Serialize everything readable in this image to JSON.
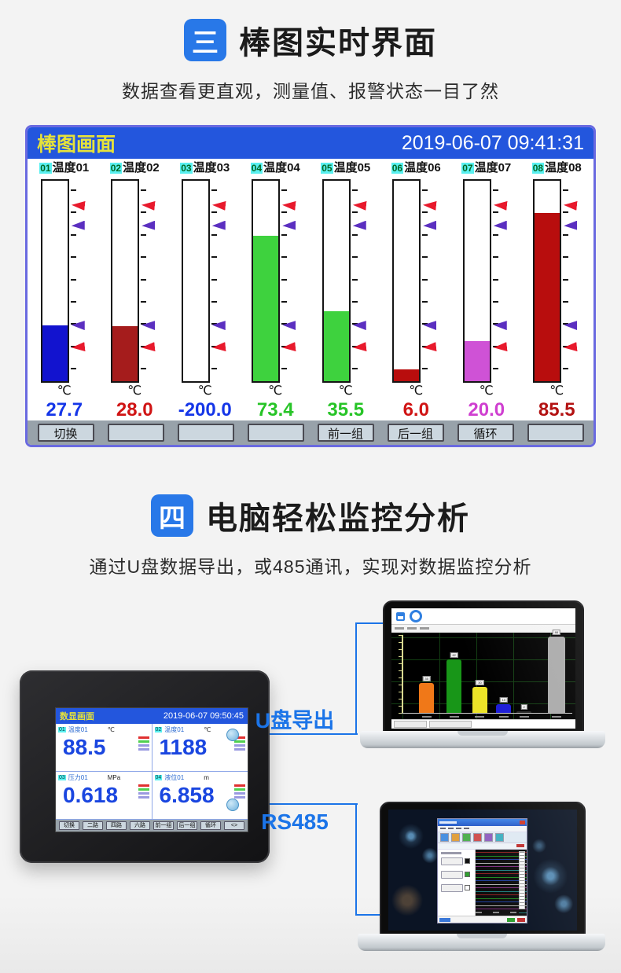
{
  "colors": {
    "accent_blue": "#2878e8",
    "link_blue": "#1b74e8",
    "screen_header_blue": "#2356dd",
    "screen_title_yellow": "#e6e23a",
    "alarm_red": "#e8192c",
    "alarm_purple": "#5b2fc0",
    "device_value_blue": "#1a46e0"
  },
  "section3": {
    "badge": "三",
    "title": "棒图实时界面",
    "subtitle": "数据查看更直观，测量值、报警状态一目了然",
    "screen": {
      "title": "棒图画面",
      "datetime": "2019-06-07 09:41:31",
      "alarm_marks": {
        "hh": 87,
        "h": 77,
        "l": 27,
        "ll": 16
      },
      "channels": [
        {
          "tag": "01",
          "name": "温度01",
          "unit": "℃",
          "value": "27.7",
          "fill_pct": 27.7,
          "fill_color": "#1213cf",
          "value_color": "#1536e8"
        },
        {
          "tag": "02",
          "name": "温度02",
          "unit": "℃",
          "value": "28.0",
          "fill_pct": 27.5,
          "fill_color": "#a51c1c",
          "value_color": "#d01414"
        },
        {
          "tag": "03",
          "name": "温度03",
          "unit": "℃",
          "value": "-200.0",
          "fill_pct": 0,
          "fill_color": "#ffffff",
          "value_color": "#1536e8"
        },
        {
          "tag": "04",
          "name": "温度04",
          "unit": "℃",
          "value": "73.4",
          "fill_pct": 72.5,
          "fill_color": "#3ed23e",
          "value_color": "#27c427"
        },
        {
          "tag": "05",
          "name": "温度05",
          "unit": "℃",
          "value": "35.5",
          "fill_pct": 35,
          "fill_color": "#3ed23e",
          "value_color": "#27c427"
        },
        {
          "tag": "06",
          "name": "温度06",
          "unit": "℃",
          "value": "6.0",
          "fill_pct": 6,
          "fill_color": "#b80d0d",
          "value_color": "#d01414"
        },
        {
          "tag": "07",
          "name": "温度07",
          "unit": "℃",
          "value": "20.0",
          "fill_pct": 20,
          "fill_color": "#cf52d6",
          "value_color": "#cf3fd0"
        },
        {
          "tag": "08",
          "name": "温度08",
          "unit": "℃",
          "value": "85.5",
          "fill_pct": 84,
          "fill_color": "#b80d0d",
          "value_color": "#b31212"
        }
      ],
      "buttons": [
        "切换",
        "",
        "",
        "",
        "前一组",
        "后一组",
        "循环",
        ""
      ]
    }
  },
  "chart_data": [
    {
      "type": "bar",
      "title": "棒图画面",
      "datetime": "2019-06-07 09:41:31",
      "categories": [
        "温度01",
        "温度02",
        "温度03",
        "温度04",
        "温度05",
        "温度06",
        "温度07",
        "温度08"
      ],
      "values": [
        27.7,
        28.0,
        -200.0,
        73.4,
        35.5,
        6.0,
        20.0,
        85.5
      ],
      "unit": "℃",
      "bar_colors": [
        "#1213cf",
        "#a51c1c",
        "#ffffff",
        "#3ed23e",
        "#3ed23e",
        "#b80d0d",
        "#cf52d6",
        "#b80d0d"
      ],
      "alarm_marks_pct_from_bottom": {
        "high_high": 87,
        "high": 77,
        "low": 27,
        "low_low": 16
      },
      "ylim_pct": [
        0,
        100
      ],
      "grid": false,
      "legend": false
    },
    {
      "type": "bar",
      "note": "mini bar chart on laptop screen, values estimated from pixel heights",
      "bars": [
        {
          "label": "35",
          "value": 35,
          "color": "#f07818"
        },
        {
          "label": "62",
          "value": 62,
          "color": "#189618"
        },
        {
          "label": "30",
          "value": 30,
          "color": "#ece428"
        },
        {
          "label": "10",
          "value": 10,
          "color": "#1c1cd8"
        },
        {
          "label": "2",
          "value": 2,
          "color": "#282828"
        },
        {
          "label": "88",
          "value": 88,
          "color": "#aaaaaa"
        }
      ],
      "bg": "#000000",
      "grid": "green",
      "ylim_pct": [
        0,
        100
      ]
    },
    {
      "type": "line",
      "note": "multi-channel horizontal trend curves on second laptop",
      "bg": "#0d0d0d",
      "series_count_est": 25
    }
  ],
  "section4": {
    "badge": "四",
    "title": "电脑轻松监控分析",
    "subtitle": "通过U盘数据导出，或485通讯，实现对数据监控分析",
    "device": {
      "screen_title": "数显画面",
      "datetime": "2019-06-07 09:50:45",
      "quadrants": [
        {
          "tag": "01",
          "name": "温度01",
          "unit": "℃",
          "value": "88.5"
        },
        {
          "tag": "02",
          "name": "温度01",
          "unit": "℃",
          "value": "1188"
        },
        {
          "tag": "03",
          "name": "压力01",
          "unit": "MPa",
          "value": "0.618"
        },
        {
          "tag": "04",
          "name": "液位01",
          "unit": "m",
          "value": "6.858"
        }
      ],
      "buttons": [
        "切换",
        "二路",
        "四路",
        "六路",
        "前一组",
        "后一组",
        "循环",
        "<>"
      ]
    },
    "links": [
      {
        "label": "U盘导出"
      },
      {
        "label": "RS485"
      }
    ]
  }
}
